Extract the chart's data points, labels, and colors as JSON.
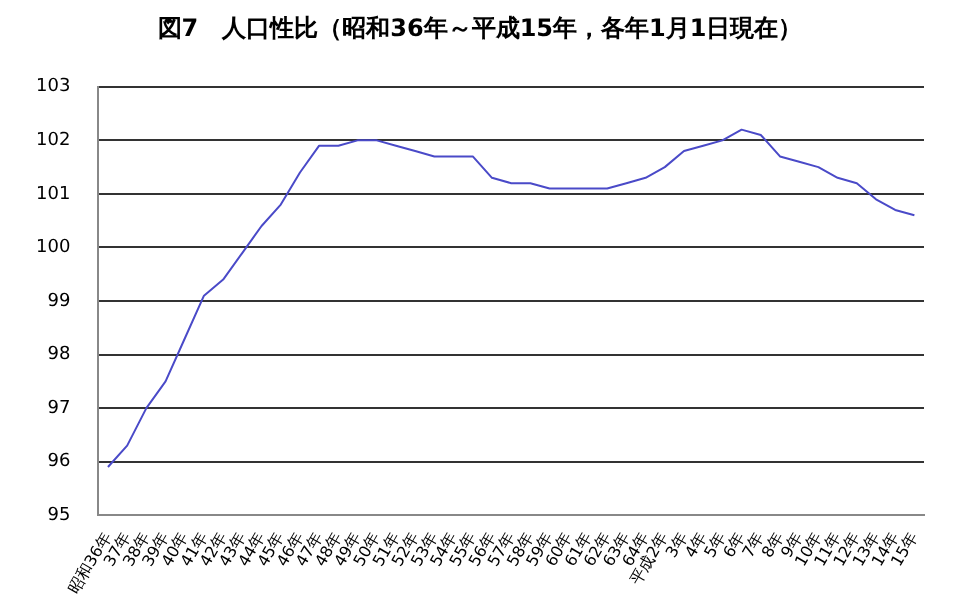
{
  "chart_data": {
    "type": "line",
    "title": "図7　人口性比（昭和36年～平成15年，各年1月1日現在）",
    "categories": [
      "昭和36年",
      "37年",
      "38年",
      "39年",
      "40年",
      "41年",
      "42年",
      "43年",
      "44年",
      "45年",
      "46年",
      "47年",
      "48年",
      "49年",
      "50年",
      "51年",
      "52年",
      "53年",
      "54年",
      "55年",
      "56年",
      "57年",
      "58年",
      "59年",
      "60年",
      "61年",
      "62年",
      "63年",
      "64年",
      "平成2年",
      "3年",
      "4年",
      "5年",
      "6年",
      "7年",
      "8年",
      "9年",
      "10年",
      "11年",
      "12年",
      "13年",
      "14年",
      "15年"
    ],
    "series": [
      {
        "color": "#4a4ac8",
        "values": [
          95.9,
          96.3,
          97.0,
          97.5,
          98.3,
          99.1,
          99.4,
          99.9,
          100.4,
          100.8,
          101.4,
          101.9,
          101.9,
          102.0,
          102.0,
          101.9,
          101.8,
          101.7,
          101.7,
          101.7,
          101.3,
          101.2,
          101.2,
          101.1,
          101.1,
          101.1,
          101.1,
          101.2,
          101.3,
          101.5,
          101.8,
          101.9,
          102.0,
          102.2,
          102.1,
          101.7,
          101.6,
          101.5,
          101.3,
          101.2,
          100.9,
          100.7,
          100.6
        ]
      }
    ],
    "ylim": [
      95,
      103
    ],
    "yticks": [
      95,
      96,
      97,
      98,
      99,
      100,
      101,
      102,
      103
    ],
    "grid": "y",
    "legend": false,
    "marker": "none",
    "line_style": "solid"
  }
}
